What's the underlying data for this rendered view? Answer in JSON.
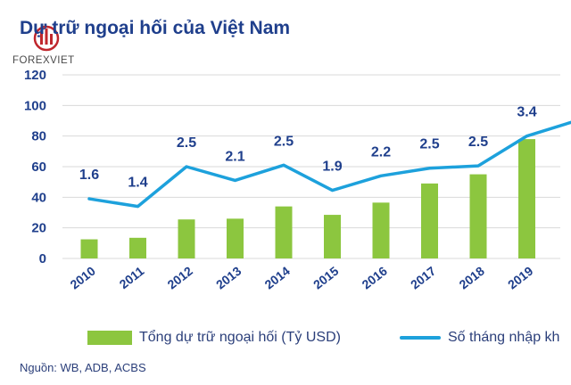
{
  "logo": {
    "brand_text": "FOREXVIET",
    "mark_color": "#c0272d"
  },
  "colors": {
    "bar": "#8cc63f",
    "line": "#1da1dc",
    "text": "#1f3f8c",
    "grid": "#d9d9d9"
  },
  "chart_data": {
    "type": "bar",
    "title": "Dự trữ ngoại hối của Việt Nam",
    "categories": [
      "2010",
      "2011",
      "2012",
      "2013",
      "2014",
      "2015",
      "2016",
      "2017",
      "2018",
      "2019"
    ],
    "series": [
      {
        "name": "Tổng dự trữ ngoại hối (Tỷ USD)",
        "type": "bar",
        "values": [
          12.5,
          13.5,
          25.5,
          26,
          34,
          28.5,
          36.5,
          49,
          55,
          78
        ]
      },
      {
        "name": "Số tháng nhập kh",
        "type": "line",
        "values": [
          39,
          34,
          60,
          51,
          61,
          44.5,
          54,
          59,
          60.5,
          80
        ],
        "labels": [
          "1.6",
          "1.4",
          "2.5",
          "2.1",
          "2.5",
          "1.9",
          "2.2",
          "2.5",
          "2.5",
          "3.4"
        ]
      }
    ],
    "ylim": [
      0,
      120
    ],
    "yticks": [
      "0",
      "20",
      "40",
      "60",
      "80",
      "100",
      "120"
    ],
    "grid": true,
    "legend_position": "bottom"
  },
  "source": "Nguồn: WB, ADB, ACBS"
}
